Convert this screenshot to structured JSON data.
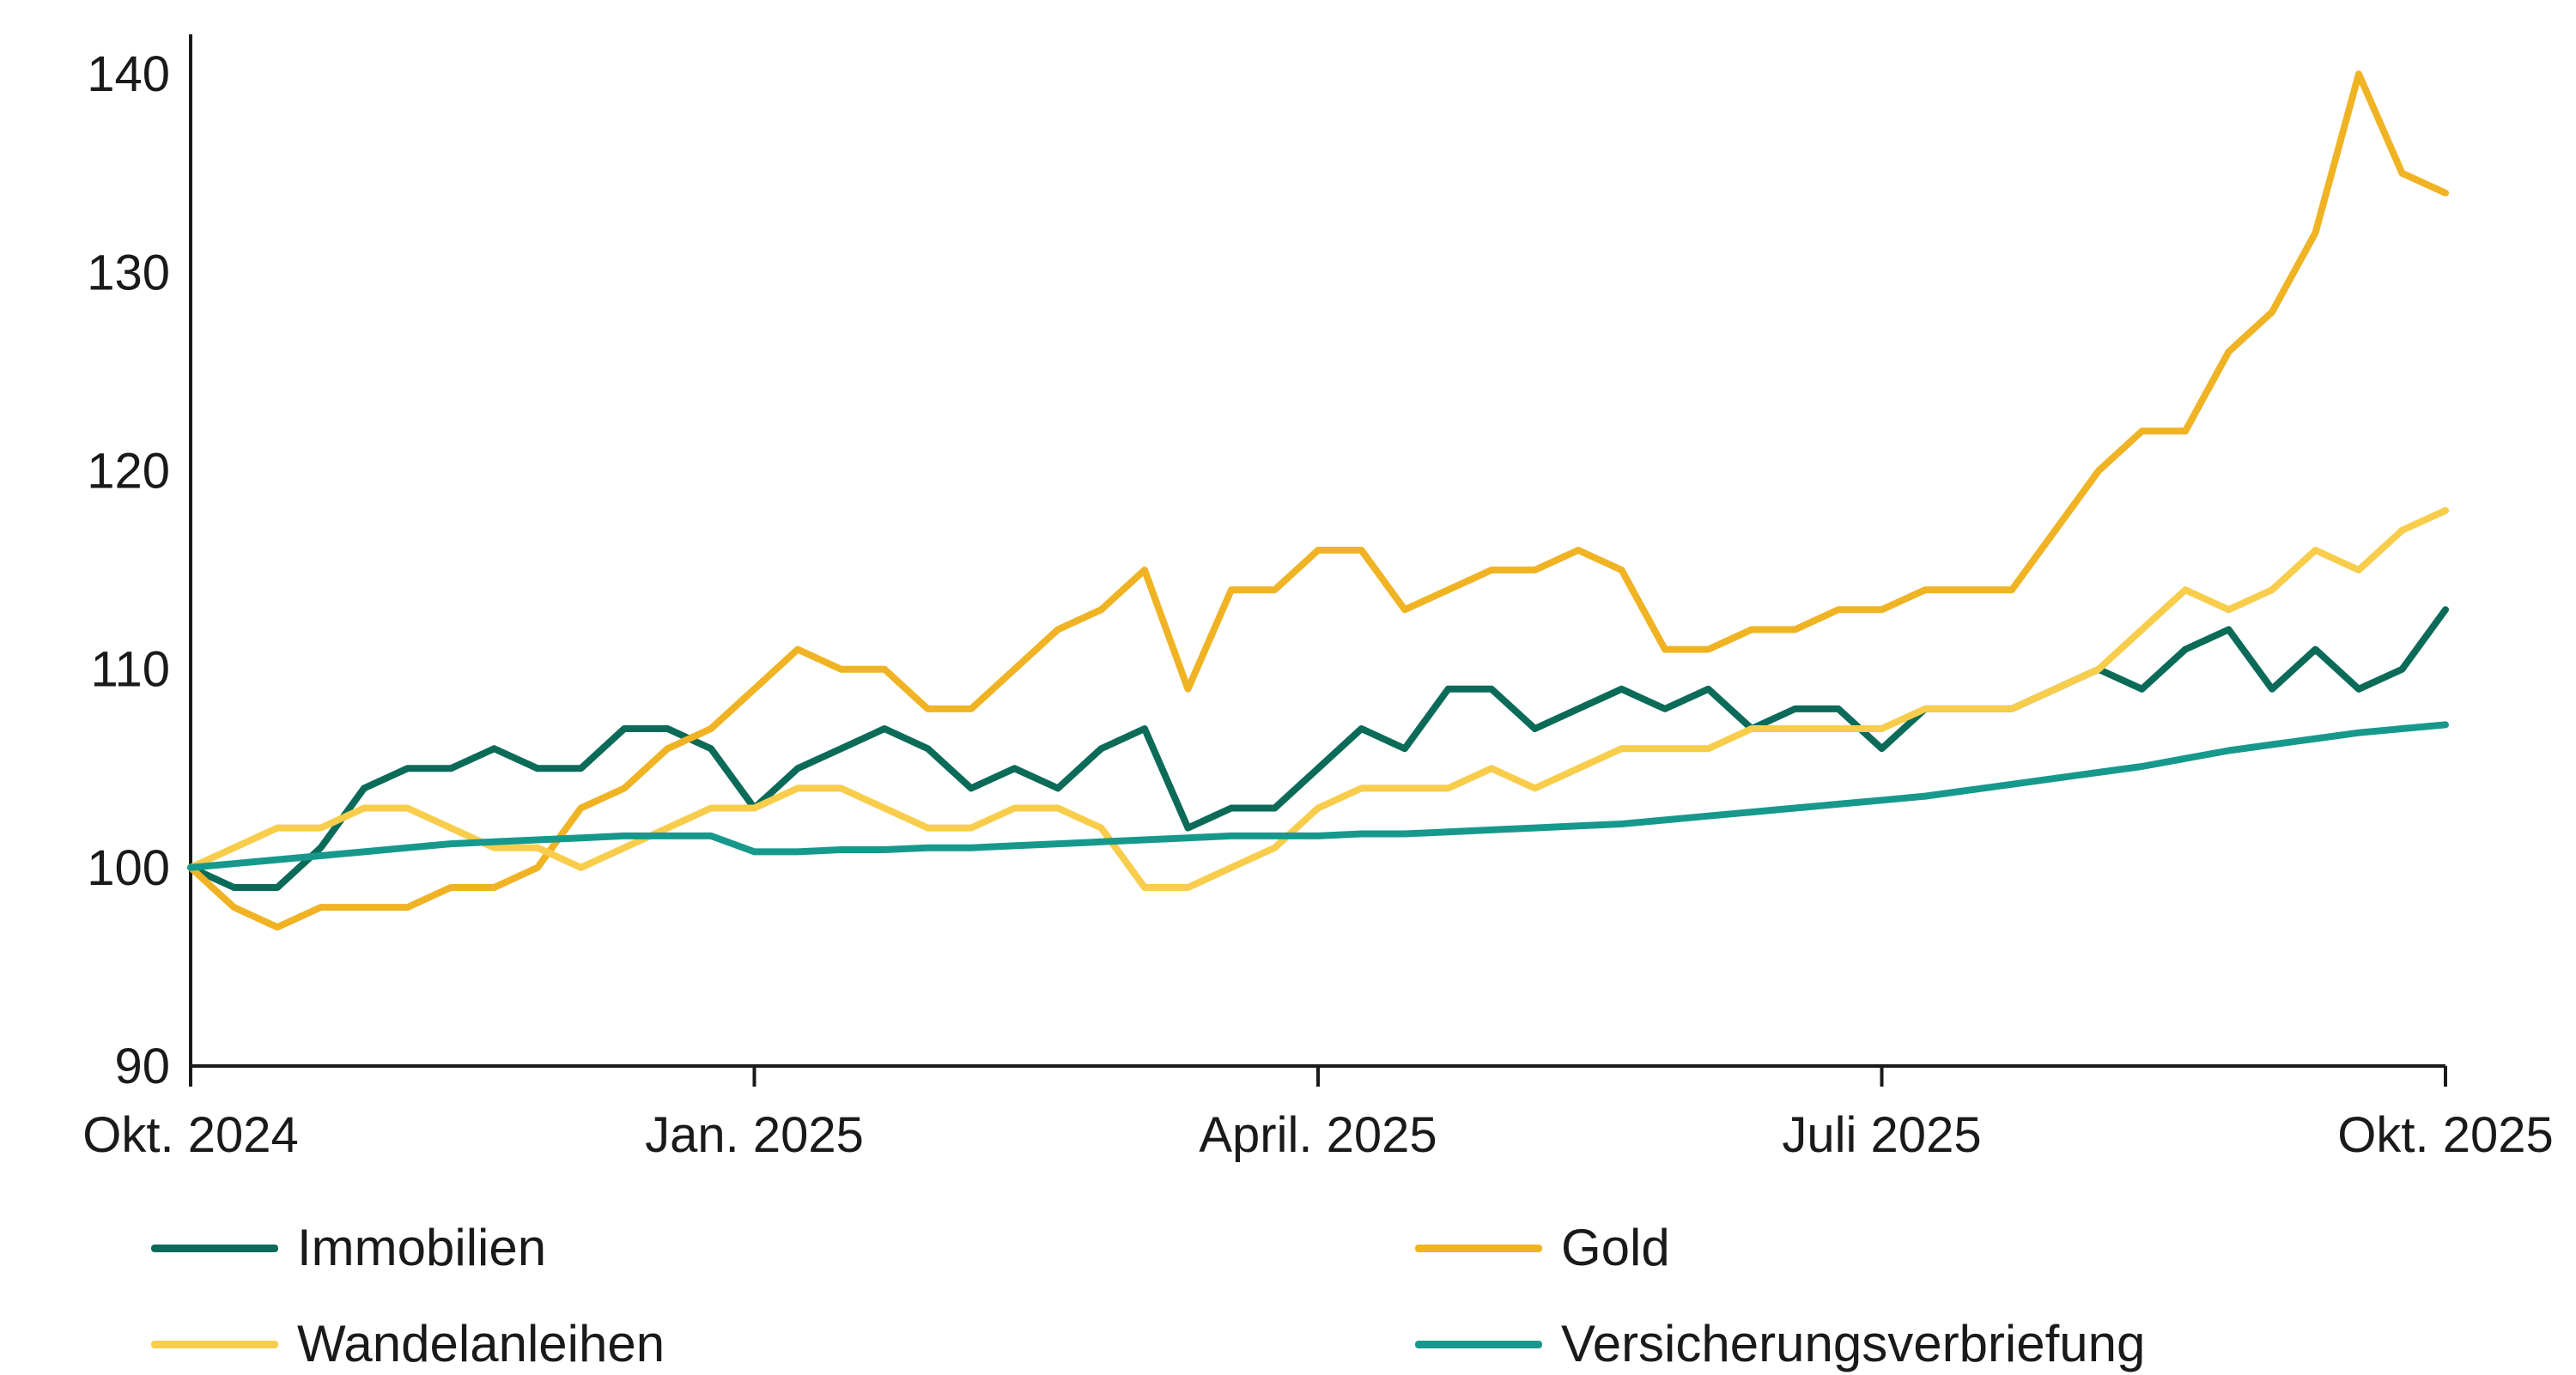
{
  "chart_data": {
    "type": "line",
    "title": "",
    "xlabel": "",
    "ylabel": "",
    "ylim": [
      90,
      142
    ],
    "yticks": [
      90,
      100,
      110,
      120,
      130,
      140
    ],
    "xlim": [
      0,
      52
    ],
    "xticks": [
      {
        "pos": 0,
        "label": "Okt. 2024"
      },
      {
        "pos": 13,
        "label": "Jan. 2025"
      },
      {
        "pos": 26,
        "label": "April. 2025"
      },
      {
        "pos": 39,
        "label": "Juli 2025"
      },
      {
        "pos": 52,
        "label": "Okt. 2025"
      }
    ],
    "x": [
      0,
      1,
      2,
      3,
      4,
      5,
      6,
      7,
      8,
      9,
      10,
      11,
      12,
      13,
      14,
      15,
      16,
      17,
      18,
      19,
      20,
      21,
      22,
      23,
      24,
      25,
      26,
      27,
      28,
      29,
      30,
      31,
      32,
      33,
      34,
      35,
      36,
      37,
      38,
      39,
      40,
      41,
      42,
      43,
      44,
      45,
      46,
      47,
      48,
      49,
      50,
      51,
      52
    ],
    "series": [
      {
        "name": "Immobilien",
        "color": "#0b6b58",
        "values": [
          100,
          99,
          99,
          101,
          104,
          105,
          105,
          106,
          105,
          105,
          107,
          107,
          106,
          103,
          105,
          106,
          107,
          106,
          104,
          105,
          104,
          106,
          107,
          102,
          103,
          103,
          105,
          107,
          106,
          109,
          109,
          107,
          108,
          109,
          108,
          109,
          107,
          108,
          108,
          106,
          108,
          108,
          108,
          109,
          110,
          109,
          111,
          112,
          109,
          111,
          109,
          110,
          113
        ]
      },
      {
        "name": "Gold",
        "color": "#f0b323",
        "values": [
          100,
          98,
          97,
          98,
          98,
          98,
          99,
          99,
          100,
          103,
          104,
          106,
          107,
          109,
          111,
          110,
          110,
          108,
          108,
          110,
          112,
          113,
          115,
          109,
          114,
          114,
          116,
          116,
          113,
          114,
          115,
          115,
          116,
          115,
          111,
          111,
          112,
          112,
          113,
          113,
          114,
          114,
          114,
          117,
          120,
          122,
          122,
          126,
          128,
          132,
          140,
          135,
          134
        ]
      },
      {
        "name": "Wandelanleihen",
        "color": "#f8cd4b",
        "values": [
          100,
          101,
          102,
          102,
          103,
          103,
          102,
          101,
          101,
          100,
          101,
          102,
          103,
          103,
          104,
          104,
          103,
          102,
          102,
          103,
          103,
          102,
          99,
          99,
          100,
          101,
          103,
          104,
          104,
          104,
          105,
          104,
          105,
          106,
          106,
          106,
          107,
          107,
          107,
          107,
          108,
          108,
          108,
          109,
          110,
          112,
          114,
          113,
          114,
          116,
          115,
          117,
          118
        ]
      },
      {
        "name": "Versicherungsverbriefung",
        "color": "#16998c",
        "values": [
          100,
          100.2,
          100.4,
          100.6,
          100.8,
          101,
          101.2,
          101.3,
          101.4,
          101.5,
          101.6,
          101.6,
          101.6,
          100.8,
          100.8,
          100.9,
          100.9,
          101.0,
          101.0,
          101.1,
          101.2,
          101.3,
          101.4,
          101.5,
          101.6,
          101.6,
          101.6,
          101.7,
          101.7,
          101.8,
          101.9,
          102.0,
          102.1,
          102.2,
          102.4,
          102.6,
          102.8,
          103.0,
          103.2,
          103.4,
          103.6,
          103.9,
          104.2,
          104.5,
          104.8,
          105.1,
          105.5,
          105.9,
          106.2,
          106.5,
          106.8,
          107.0,
          107.2
        ]
      }
    ]
  },
  "legend": [
    {
      "name": "Immobilien",
      "color": "#0b6b58"
    },
    {
      "name": "Gold",
      "color": "#f0b323"
    },
    {
      "name": "Wandelanleihen",
      "color": "#f8cd4b"
    },
    {
      "name": "Versicherungsverbriefung",
      "color": "#16998c"
    }
  ]
}
